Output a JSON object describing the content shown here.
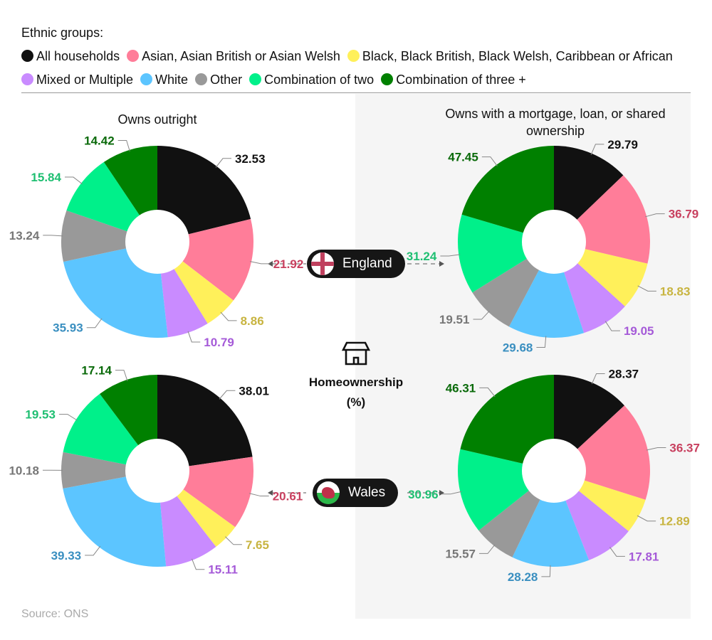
{
  "legend": {
    "title": "Ethnic groups:",
    "items": [
      {
        "label": "All households",
        "color": "#111111"
      },
      {
        "label": "Asian, Asian British or Asian Welsh",
        "color": "#ff7d99"
      },
      {
        "label": "Black, Black British, Black Welsh, Caribbean or African",
        "color": "#fff05a"
      },
      {
        "label": "Mixed or Multiple",
        "color": "#c98bff"
      },
      {
        "label": "White",
        "color": "#5cc5ff"
      },
      {
        "label": "Other",
        "color": "#999999"
      },
      {
        "label": "Combination of two",
        "color": "#00f08a"
      },
      {
        "label": "Combination of three +",
        "color": "#008000"
      }
    ]
  },
  "label_colors": [
    "#111111",
    "#c8405f",
    "#c8b440",
    "#a55ad8",
    "#3a8fc0",
    "#777777",
    "#1fbf72",
    "#0a6a0a"
  ],
  "columns": [
    "Owns outright",
    "Owns with a mortgage, loan, or shared ownership"
  ],
  "rows": [
    "England",
    "Wales"
  ],
  "center": {
    "title": "Homeownership",
    "unit": "(%)"
  },
  "source": "Source: ONS",
  "chart_data": [
    {
      "type": "pie",
      "region": "England",
      "tenure": "Owns outright",
      "categories": [
        "All households",
        "Asian, Asian British or Asian Welsh",
        "Black, Black British, Black Welsh, Caribbean or African",
        "Mixed or Multiple",
        "White",
        "Other",
        "Combination of two",
        "Combination of three +"
      ],
      "values": [
        32.53,
        21.92,
        8.86,
        10.79,
        35.93,
        13.24,
        15.84,
        14.42
      ]
    },
    {
      "type": "pie",
      "region": "England",
      "tenure": "Owns with a mortgage, loan, or shared ownership",
      "categories": [
        "All households",
        "Asian, Asian British or Asian Welsh",
        "Black, Black British, Black Welsh, Caribbean or African",
        "Mixed or Multiple",
        "White",
        "Other",
        "Combination of two",
        "Combination of three +"
      ],
      "values": [
        29.79,
        36.79,
        18.83,
        19.05,
        29.68,
        19.51,
        31.24,
        47.45
      ]
    },
    {
      "type": "pie",
      "region": "Wales",
      "tenure": "Owns outright",
      "categories": [
        "All households",
        "Asian, Asian British or Asian Welsh",
        "Black, Black British, Black Welsh, Caribbean or African",
        "Mixed or Multiple",
        "White",
        "Other",
        "Combination of two",
        "Combination of three +"
      ],
      "values": [
        38.01,
        20.61,
        7.65,
        15.11,
        39.33,
        10.18,
        19.53,
        17.14
      ]
    },
    {
      "type": "pie",
      "region": "Wales",
      "tenure": "Owns with a mortgage, loan, or shared ownership",
      "categories": [
        "All households",
        "Asian, Asian British or Asian Welsh",
        "Black, Black British, Black Welsh, Caribbean or African",
        "Mixed or Multiple",
        "White",
        "Other",
        "Combination of two",
        "Combination of three +"
      ],
      "values": [
        28.37,
        36.37,
        12.89,
        17.81,
        28.28,
        15.57,
        30.96,
        46.31
      ]
    }
  ]
}
